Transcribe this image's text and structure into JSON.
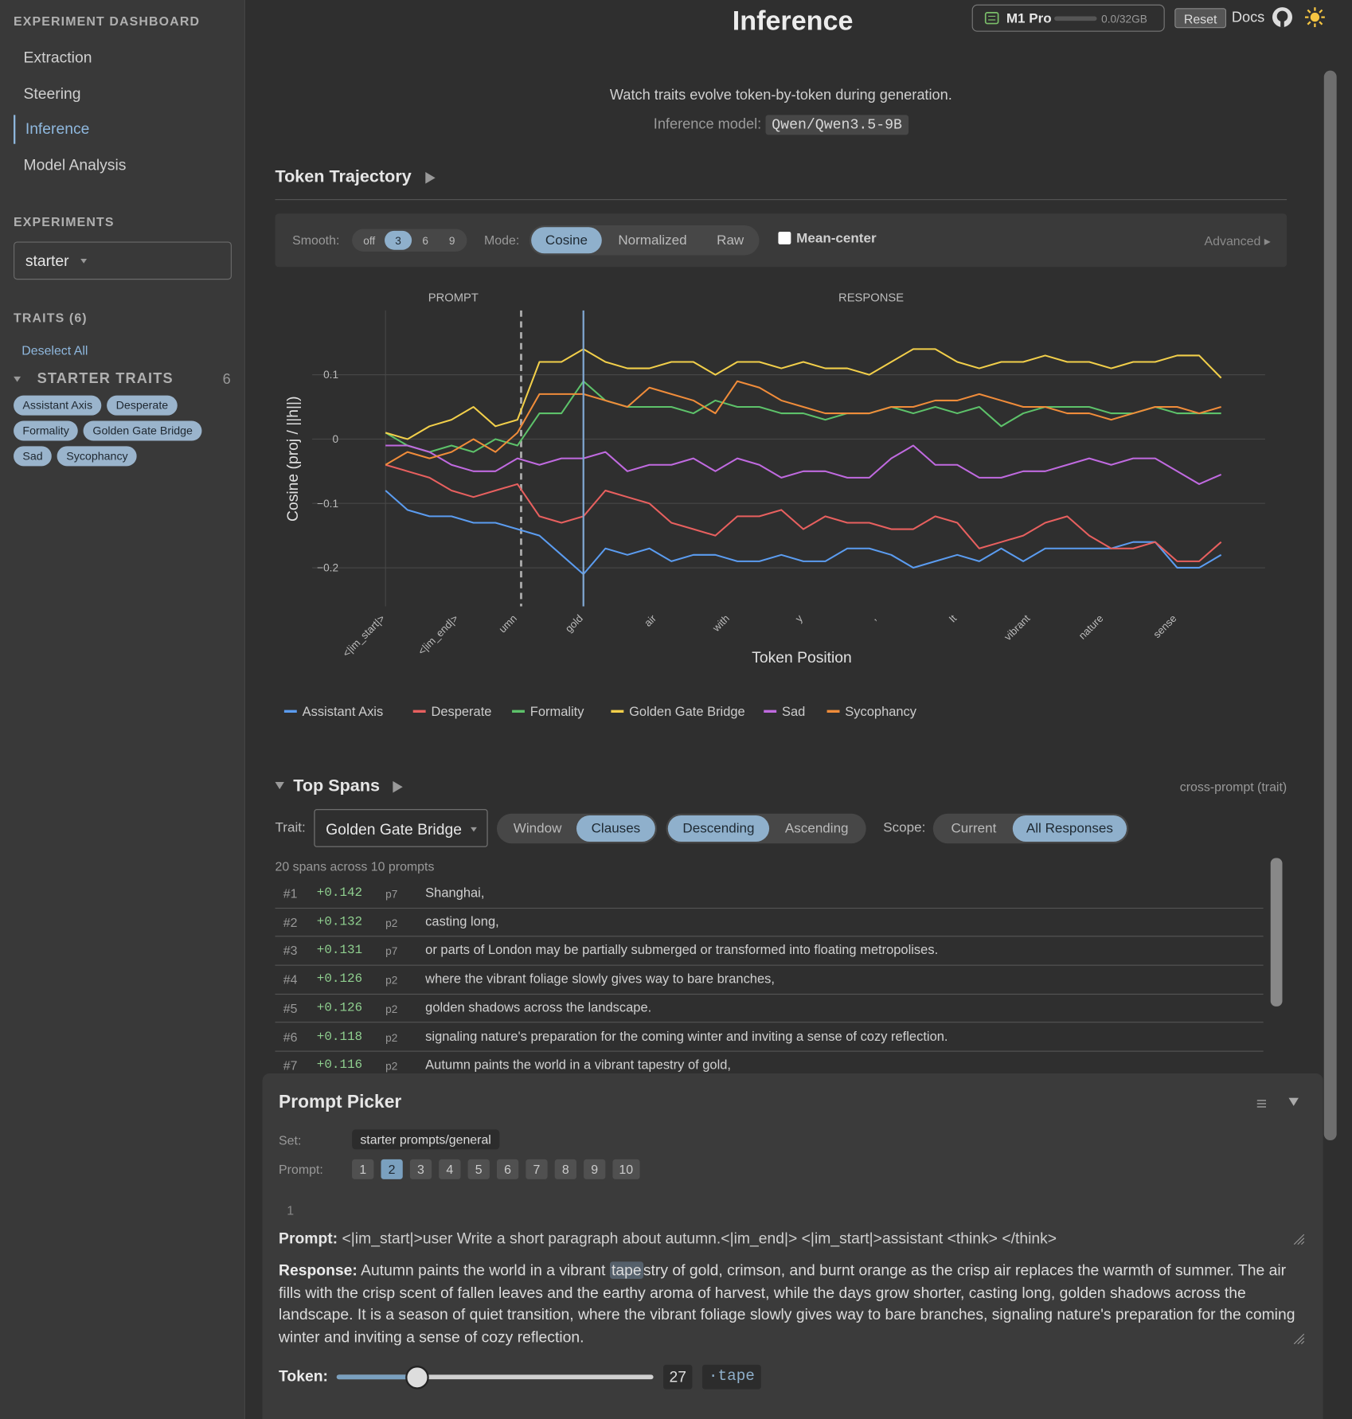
{
  "sidebar": {
    "title": "EXPERIMENT DASHBOARD",
    "nav": [
      "Extraction",
      "Steering",
      "Inference",
      "Model Analysis"
    ],
    "active_nav": 2,
    "experiments_heading": "EXPERIMENTS",
    "experiment": "starter",
    "traits_heading": "TRAITS (6)",
    "deselect": "Deselect All",
    "group_name": "STARTER TRAITS",
    "group_count": 6,
    "traits": [
      "Assistant Axis",
      "Desperate",
      "Formality",
      "Golden Gate Bridge",
      "Sad",
      "Sycophancy"
    ]
  },
  "header": {
    "title": "Inference",
    "device": "M1 Pro",
    "memory": "0.0/32GB",
    "reset": "Reset",
    "docs": "Docs"
  },
  "intro": {
    "text": "Watch traits evolve token-by-token during generation.",
    "model_label": "Inference model:",
    "model": "Qwen/Qwen3.5-9B"
  },
  "trajectory": {
    "heading": "Token Trajectory",
    "smooth_label": "Smooth:",
    "smooth_options": [
      "off",
      "3",
      "6",
      "9"
    ],
    "smooth_selected": 1,
    "mode_label": "Mode:",
    "modes": [
      "Cosine",
      "Normalized",
      "Raw"
    ],
    "mode_selected": 0,
    "mean_center": "Mean-center",
    "advanced": "Advanced ▸"
  },
  "chart_data": {
    "type": "line",
    "ylabel": "Cosine (proj / ||h||)",
    "xlabel": "Token Position",
    "prompt_label": "PROMPT",
    "response_label": "RESPONSE",
    "response_start": 18.5,
    "grid": true,
    "xlim": [
      -10,
      120
    ],
    "ylim": [
      -0.26,
      0.2
    ],
    "xticks": [
      {
        "value": 0,
        "label": "<|im_start|>"
      },
      {
        "value": 10,
        "label": "<|im_end|>"
      },
      {
        "value": 18,
        "label": "umn"
      },
      {
        "value": 27,
        "label": "gold"
      },
      {
        "value": 37,
        "label": "air"
      },
      {
        "value": 47,
        "label": "with"
      },
      {
        "value": 57,
        "label": "y"
      },
      {
        "value": 67,
        "label": ","
      },
      {
        "value": 78,
        "label": "It"
      },
      {
        "value": 88,
        "label": "vibrant"
      },
      {
        "value": 98,
        "label": "nature"
      },
      {
        "value": 108,
        "label": "sense"
      }
    ],
    "yticks": [
      {
        "value": -0.2,
        "label": "−0.2"
      },
      {
        "value": -0.1,
        "label": "−0.1"
      },
      0,
      0.1
    ],
    "x": [
      0,
      3,
      6,
      9,
      12,
      15,
      18,
      21,
      24,
      27,
      30,
      33,
      36,
      39,
      42,
      45,
      48,
      51,
      54,
      57,
      60,
      63,
      66,
      69,
      72,
      75,
      78,
      81,
      84,
      87,
      90,
      93,
      96,
      99,
      102,
      105,
      108,
      111,
      114
    ],
    "series": [
      {
        "name": "Assistant Axis",
        "color": "#5b9cf0",
        "values": [
          -0.08,
          -0.11,
          -0.12,
          -0.12,
          -0.13,
          -0.13,
          -0.14,
          -0.15,
          -0.18,
          -0.21,
          -0.17,
          -0.18,
          -0.17,
          -0.19,
          -0.18,
          -0.18,
          -0.19,
          -0.19,
          -0.18,
          -0.19,
          -0.19,
          -0.17,
          -0.17,
          -0.18,
          -0.2,
          -0.19,
          -0.18,
          -0.19,
          -0.17,
          -0.19,
          -0.17,
          -0.17,
          -0.17,
          -0.17,
          -0.16,
          -0.16,
          -0.2,
          -0.2,
          -0.18
        ]
      },
      {
        "name": "Desperate",
        "color": "#e8605f",
        "values": [
          -0.04,
          -0.05,
          -0.06,
          -0.08,
          -0.09,
          -0.08,
          -0.07,
          -0.12,
          -0.13,
          -0.12,
          -0.08,
          -0.09,
          -0.1,
          -0.13,
          -0.14,
          -0.15,
          -0.12,
          -0.12,
          -0.11,
          -0.14,
          -0.12,
          -0.13,
          -0.13,
          -0.14,
          -0.14,
          -0.12,
          -0.13,
          -0.17,
          -0.16,
          -0.15,
          -0.13,
          -0.12,
          -0.15,
          -0.17,
          -0.17,
          -0.16,
          -0.19,
          -0.19,
          -0.16
        ]
      },
      {
        "name": "Formality",
        "color": "#5dc26a",
        "values": [
          0.01,
          -0.01,
          -0.02,
          -0.01,
          -0.02,
          0.0,
          -0.01,
          0.04,
          0.04,
          0.09,
          0.06,
          0.05,
          0.05,
          0.05,
          0.04,
          0.06,
          0.05,
          0.05,
          0.04,
          0.04,
          0.03,
          0.04,
          0.04,
          0.05,
          0.04,
          0.05,
          0.04,
          0.05,
          0.02,
          0.04,
          0.05,
          0.05,
          0.05,
          0.04,
          0.04,
          0.05,
          0.04,
          0.04,
          0.04
        ]
      },
      {
        "name": "Golden Gate Bridge",
        "color": "#f2cf4a",
        "values": [
          0.01,
          0.0,
          0.02,
          0.03,
          0.05,
          0.02,
          0.03,
          0.12,
          0.12,
          0.14,
          0.12,
          0.11,
          0.11,
          0.12,
          0.12,
          0.1,
          0.12,
          0.12,
          0.11,
          0.12,
          0.11,
          0.11,
          0.1,
          0.12,
          0.14,
          0.14,
          0.12,
          0.11,
          0.12,
          0.12,
          0.13,
          0.12,
          0.12,
          0.11,
          0.12,
          0.12,
          0.13,
          0.13,
          0.095
        ]
      },
      {
        "name": "Sad",
        "color": "#c06ae0",
        "values": [
          -0.01,
          -0.01,
          -0.02,
          -0.04,
          -0.05,
          -0.05,
          -0.03,
          -0.04,
          -0.03,
          -0.03,
          -0.02,
          -0.05,
          -0.04,
          -0.04,
          -0.03,
          -0.05,
          -0.03,
          -0.04,
          -0.06,
          -0.05,
          -0.05,
          -0.06,
          -0.06,
          -0.03,
          -0.01,
          -0.04,
          -0.04,
          -0.06,
          -0.06,
          -0.05,
          -0.05,
          -0.04,
          -0.03,
          -0.04,
          -0.03,
          -0.03,
          -0.05,
          -0.07,
          -0.055
        ]
      },
      {
        "name": "Sycophancy",
        "color": "#f08c3a",
        "values": [
          -0.04,
          -0.02,
          -0.03,
          -0.02,
          0.0,
          -0.02,
          0.01,
          0.07,
          0.07,
          0.07,
          0.06,
          0.05,
          0.08,
          0.07,
          0.06,
          0.04,
          0.09,
          0.08,
          0.06,
          0.05,
          0.04,
          0.04,
          0.04,
          0.05,
          0.05,
          0.06,
          0.06,
          0.07,
          0.06,
          0.05,
          0.05,
          0.04,
          0.04,
          0.03,
          0.04,
          0.05,
          0.05,
          0.04,
          0.05
        ]
      }
    ]
  },
  "top_spans": {
    "heading": "Top Spans",
    "scope_note": "cross-prompt (trait)",
    "trait_label": "Trait:",
    "trait": "Golden Gate Bridge",
    "granularity": [
      "Window",
      "Clauses"
    ],
    "granularity_selected": 1,
    "order": [
      "Descending",
      "Ascending"
    ],
    "order_selected": 0,
    "scope_label": "Scope:",
    "scope": [
      "Current",
      "All Responses"
    ],
    "scope_selected": 1,
    "summary": "20 spans across 10 prompts",
    "rows": [
      {
        "rank": "#1",
        "score": "+0.142",
        "prompt": "p7",
        "text": "Shanghai,"
      },
      {
        "rank": "#2",
        "score": "+0.132",
        "prompt": "p2",
        "text": "casting long,"
      },
      {
        "rank": "#3",
        "score": "+0.131",
        "prompt": "p7",
        "text": "or parts of London may be partially submerged or transformed into floating metropolises."
      },
      {
        "rank": "#4",
        "score": "+0.126",
        "prompt": "p2",
        "text": "where the vibrant foliage slowly gives way to bare branches,"
      },
      {
        "rank": "#5",
        "score": "+0.126",
        "prompt": "p2",
        "text": "golden shadows across the landscape."
      },
      {
        "rank": "#6",
        "score": "+0.118",
        "prompt": "p2",
        "text": "signaling nature's preparation for the coming winter and inviting a sense of cozy reflection."
      },
      {
        "rank": "#7",
        "score": "+0.116",
        "prompt": "p2",
        "text": "Autumn paints the world in a vibrant tapestry of gold,"
      }
    ]
  },
  "prompt_picker": {
    "title": "Prompt Picker",
    "set_label": "Set:",
    "set": "starter prompts/general",
    "prompt_label": "Prompt:",
    "prompts": [
      1,
      2,
      3,
      4,
      5,
      6,
      7,
      8,
      9,
      10
    ],
    "selected": 2,
    "line_number": 1,
    "prompt_heading": "Prompt:",
    "prompt_text": "<|im_start|>user Write a short paragraph about autumn.<|im_end|> <|im_start|>assistant <think> </think>",
    "response_heading": "Response:",
    "response_before": "Autumn paints the world in a vibrant ",
    "response_highlight": "tape",
    "response_after": "stry of gold, crimson, and burnt orange as the crisp air replaces the warmth of summer. The air fills with the crisp scent of fallen leaves and the earthy aroma of harvest, while the days grow shorter, casting long, golden shadows across the landscape. It is a season of quiet transition, where the vibrant foliage slowly gives way to bare branches, signaling nature's preparation for the coming winter and inviting a sense of cozy reflection.",
    "token_label": "Token:",
    "token": 27,
    "token_range": [
      0,
      108
    ],
    "token_text": "·tape"
  }
}
